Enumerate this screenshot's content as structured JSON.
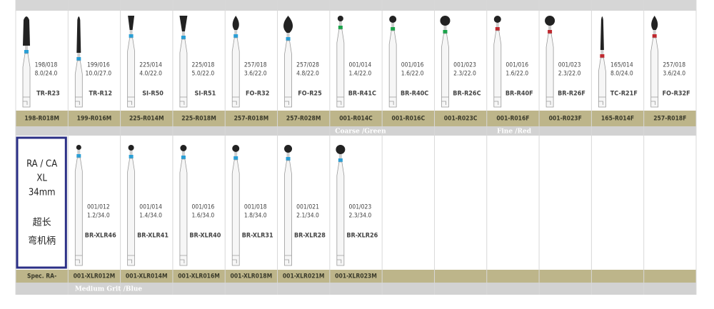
{
  "rows": [
    {
      "items": [
        {
          "code": "198/018",
          "size": "8.0/24.0",
          "name": "TR-R23",
          "label": "198-R018M"
        },
        {
          "code": "199/016",
          "size": "10.0/27.0",
          "name": "TR-R12",
          "label": "199-R016M"
        },
        {
          "code": "225/014",
          "size": "4.0/22.0",
          "name": "SI-R50",
          "label": "225-R014M"
        },
        {
          "code": "225/018",
          "size": "5.0/22.0",
          "name": "SI-R51",
          "label": "225-R018M"
        },
        {
          "code": "257/018",
          "size": "3.6/22.0",
          "name": "FO-R32",
          "label": "257-R018M"
        },
        {
          "code": "257/028",
          "size": "4.8/22.0",
          "name": "FO-R25",
          "label": "257-R028M"
        },
        {
          "code": "001/014",
          "size": "1.4/22.0",
          "name": "BR-R41C",
          "label": "001-R014C"
        },
        {
          "code": "001/016",
          "size": "1.6/22.0",
          "name": "BR-R40C",
          "label": "001-R016C"
        },
        {
          "code": "001/023",
          "size": "2.3/22.0",
          "name": "BR-R26C",
          "label": "001-R023C"
        },
        {
          "code": "001/016",
          "size": "1.6/22.0",
          "name": "BR-R40F",
          "label": "001-R016F"
        },
        {
          "code": "001/023",
          "size": "2.3/22.0",
          "name": "BR-R26F",
          "label": "001-R023F"
        },
        {
          "code": "165/014",
          "size": "8.0/24.0",
          "name": "TC-R21F",
          "label": "165-R014F"
        },
        {
          "code": "257/018",
          "size": "3.6/24.0",
          "name": "FO-R32F",
          "label": "257-R018F"
        }
      ],
      "bands": [
        "Coarse /Green",
        "Fine /Red"
      ]
    },
    {
      "spec": {
        "lines": [
          "RA / CA",
          "XL",
          "34mm",
          "超长",
          "弯机柄"
        ],
        "label": "Spec. RA-"
      },
      "items": [
        {
          "code": "001/012",
          "size": "1.2/34.0",
          "name": "BR-XLR46",
          "label": "001-XLR012M"
        },
        {
          "code": "001/014",
          "size": "1.4/34.0",
          "name": "BR-XLR41",
          "label": "001-XLR014M"
        },
        {
          "code": "001/016",
          "size": "1.6/34.0",
          "name": "BR-XLR40",
          "label": "001-XLR016M"
        },
        {
          "code": "001/018",
          "size": "1.8/34.0",
          "name": "BR-XLR31",
          "label": "001-XLR018M"
        },
        {
          "code": "001/021",
          "size": "2.1/34.0",
          "name": "BR-XLR28",
          "label": "001-XLR021M"
        },
        {
          "code": "001/023",
          "size": "2.3/34.0",
          "name": "BR-XLR26",
          "label": "001-XLR023M"
        }
      ],
      "bands": [
        "Medium Grit /Blue"
      ]
    }
  ]
}
